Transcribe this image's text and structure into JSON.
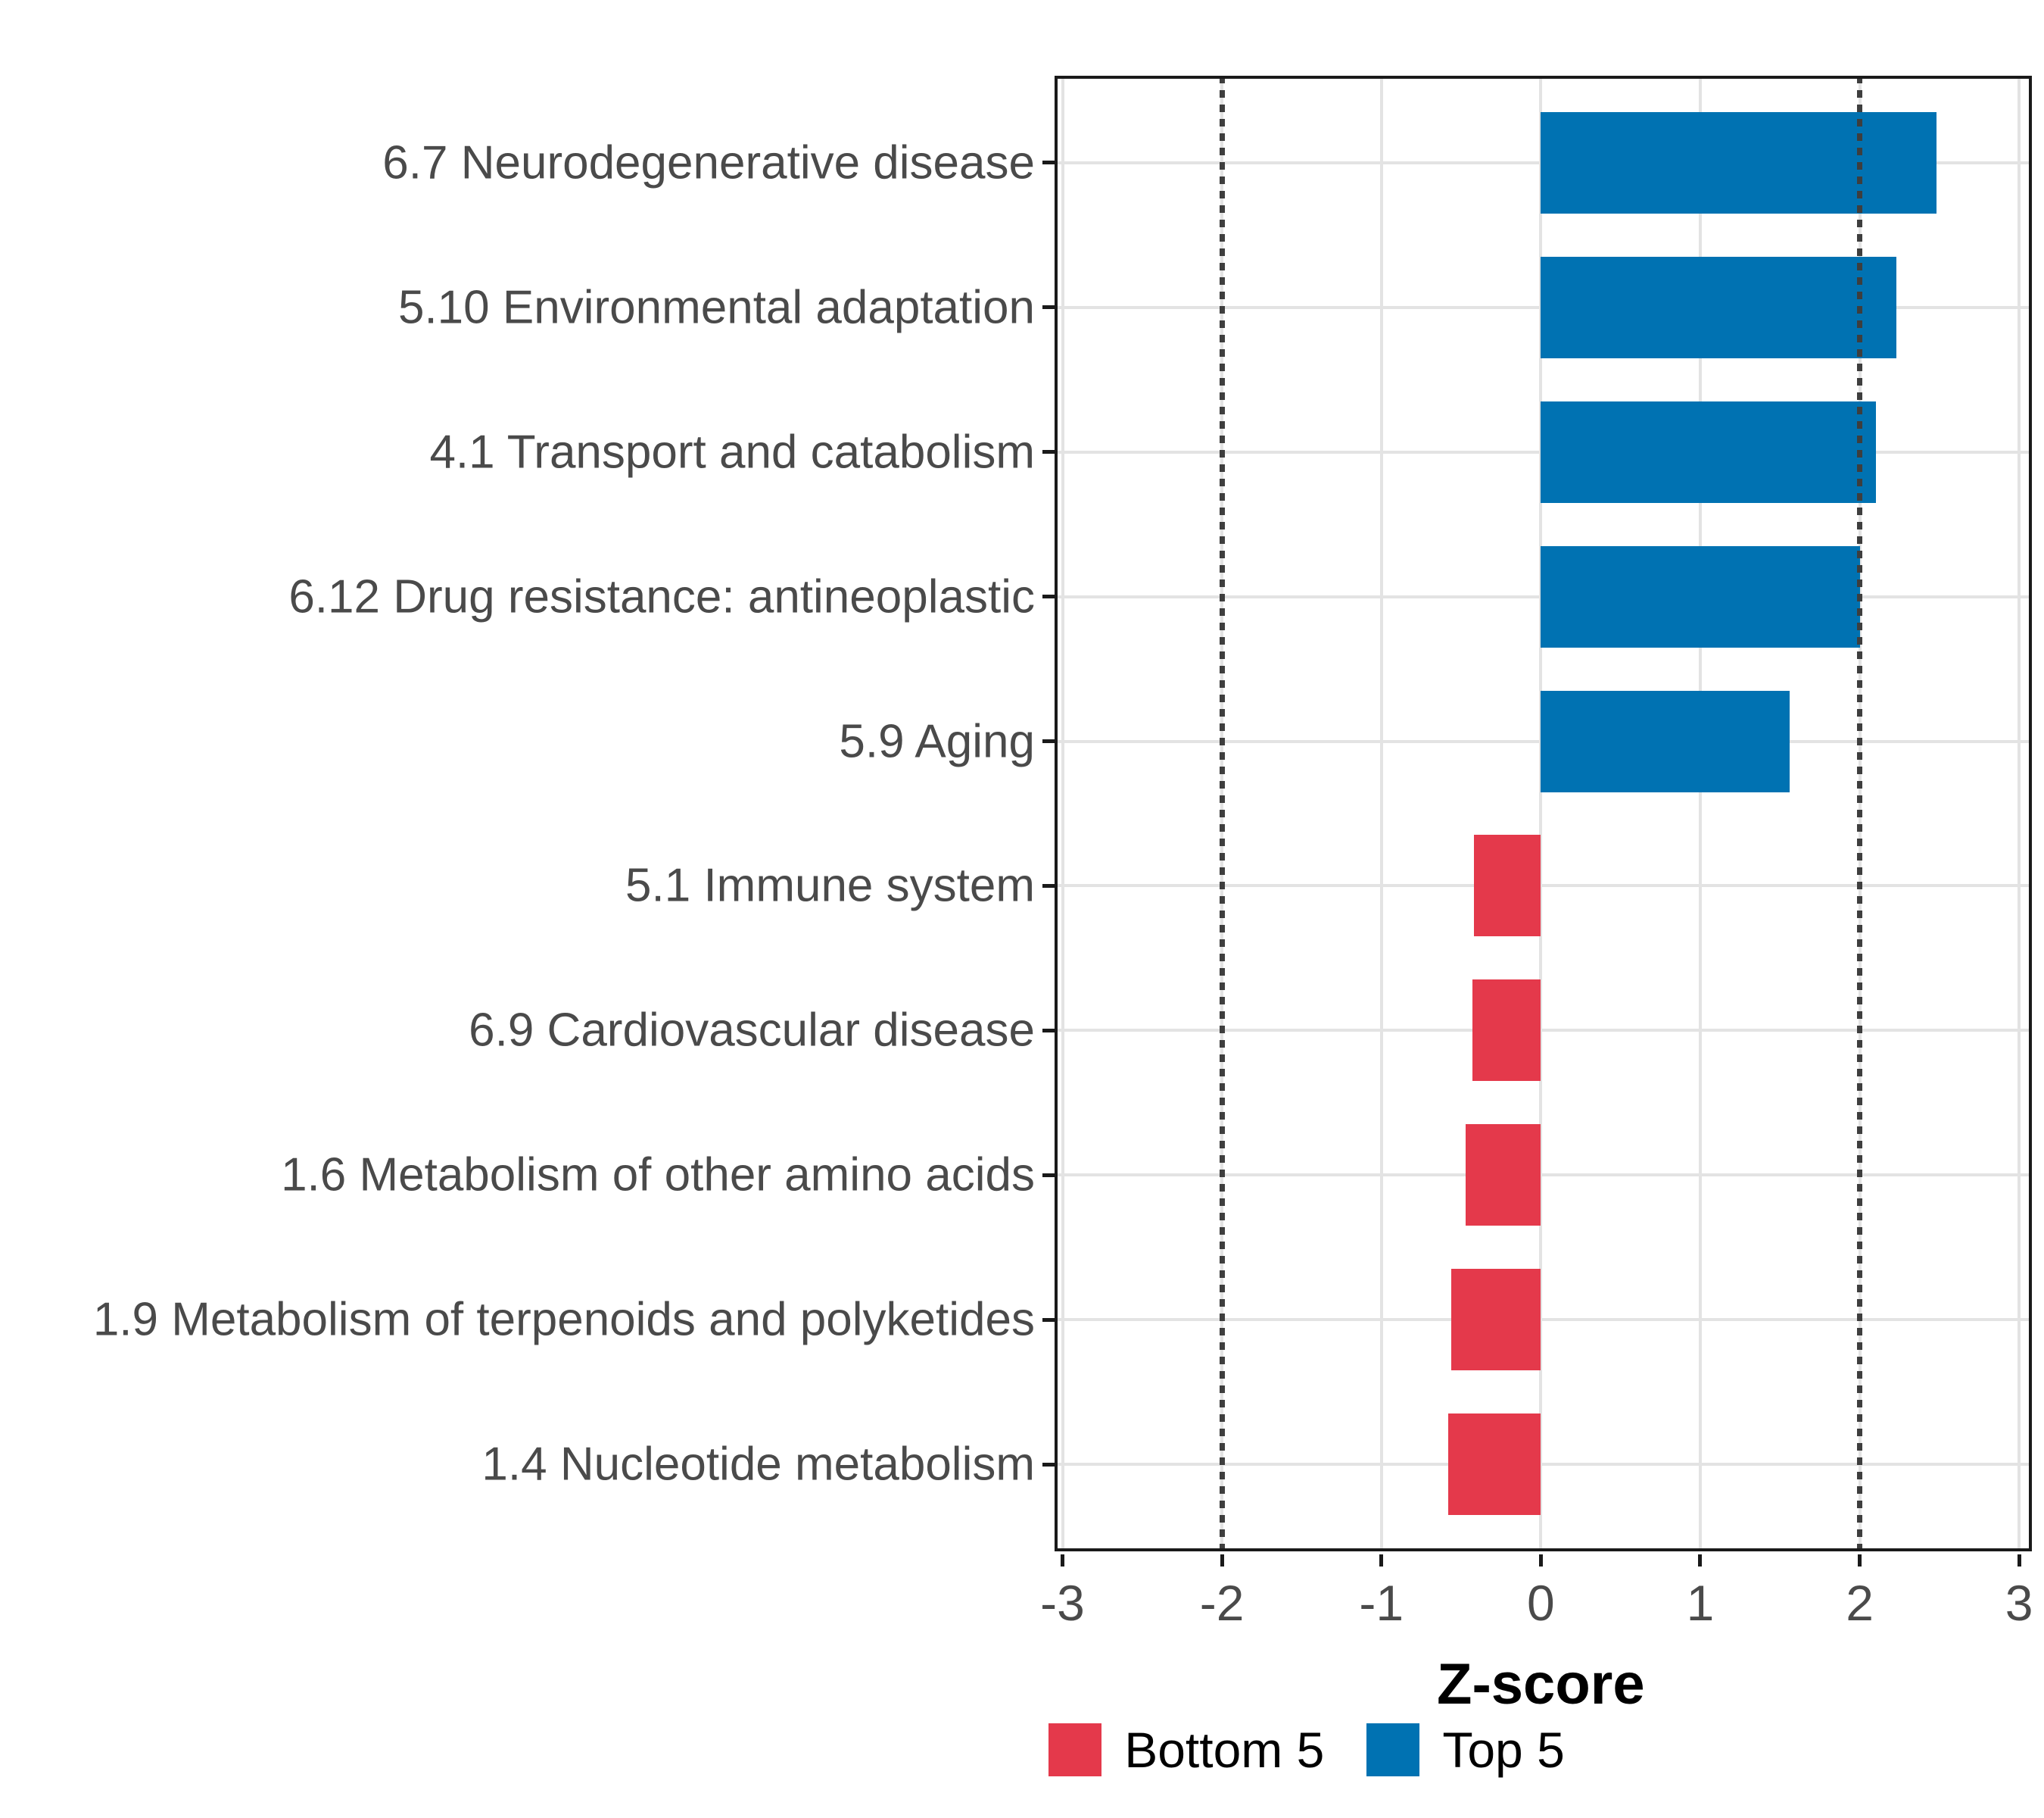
{
  "chart_data": {
    "type": "bar",
    "orientation": "horizontal",
    "title": "",
    "xlabel": "Z-score",
    "ylabel": "",
    "categories": [
      "6.7 Neurodegenerative disease",
      "5.10 Environmental adaptation",
      "4.1 Transport and catabolism",
      "6.12 Drug resistance: antineoplastic",
      "5.9 Aging",
      "5.1 Immune system",
      "6.9 Cardiovascular disease",
      "1.6 Metabolism of other amino acids",
      "1.9 Metabolism of terpenoids and polyketides",
      "1.4 Nucleotide metabolism"
    ],
    "values": [
      2.48,
      2.23,
      2.1,
      2.0,
      1.56,
      -0.42,
      -0.43,
      -0.47,
      -0.56,
      -0.58
    ],
    "groups": [
      "top5",
      "top5",
      "top5",
      "top5",
      "top5",
      "bottom5",
      "bottom5",
      "bottom5",
      "bottom5",
      "bottom5"
    ],
    "xlim": [
      -3.05,
      3.08
    ],
    "x_ticks": [
      -3,
      -2,
      -1,
      0,
      1,
      2,
      3
    ],
    "x_tick_labels": [
      "-3",
      "-2",
      "-1",
      "0",
      "1",
      "2",
      "3"
    ],
    "reference_lines": [
      -2,
      2
    ],
    "grid": true,
    "legend_position": "bottom",
    "legend": [
      {
        "label": "Bottom 5",
        "group": "bottom5",
        "color": "#e4394b"
      },
      {
        "label": "Top 5",
        "group": "top5",
        "color": "#0072b2"
      }
    ]
  },
  "colors": {
    "top5": "#0072b2",
    "bottom5": "#e4394b",
    "gridline": "#e3e3e3",
    "reference_line": "#3e3e3e",
    "panel_border": "#1a1a1a",
    "axis_text": "#4a4a4a",
    "axis_title": "#000000",
    "background": "#ffffff"
  }
}
